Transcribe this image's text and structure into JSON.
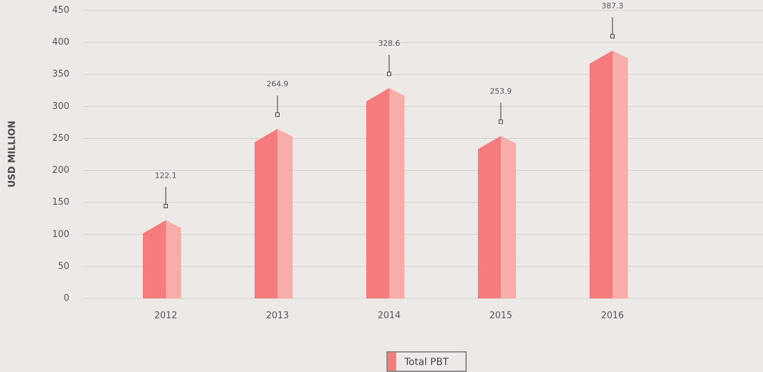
{
  "chart_data": {
    "type": "bar",
    "y_label": "USD MILLION",
    "categories": [
      "2012",
      "2013",
      "2014",
      "2015",
      "2016"
    ],
    "series": [
      {
        "name": "Total PBT",
        "color": "#f47c7c",
        "values": [
          122.1,
          264.9,
          328.6,
          253.9,
          387.3
        ]
      }
    ],
    "ylim": [
      0,
      450
    ],
    "yticks": [
      0,
      50,
      100,
      150,
      200,
      250,
      300,
      350,
      400,
      450
    ],
    "grid": true,
    "legend": "bottom"
  }
}
